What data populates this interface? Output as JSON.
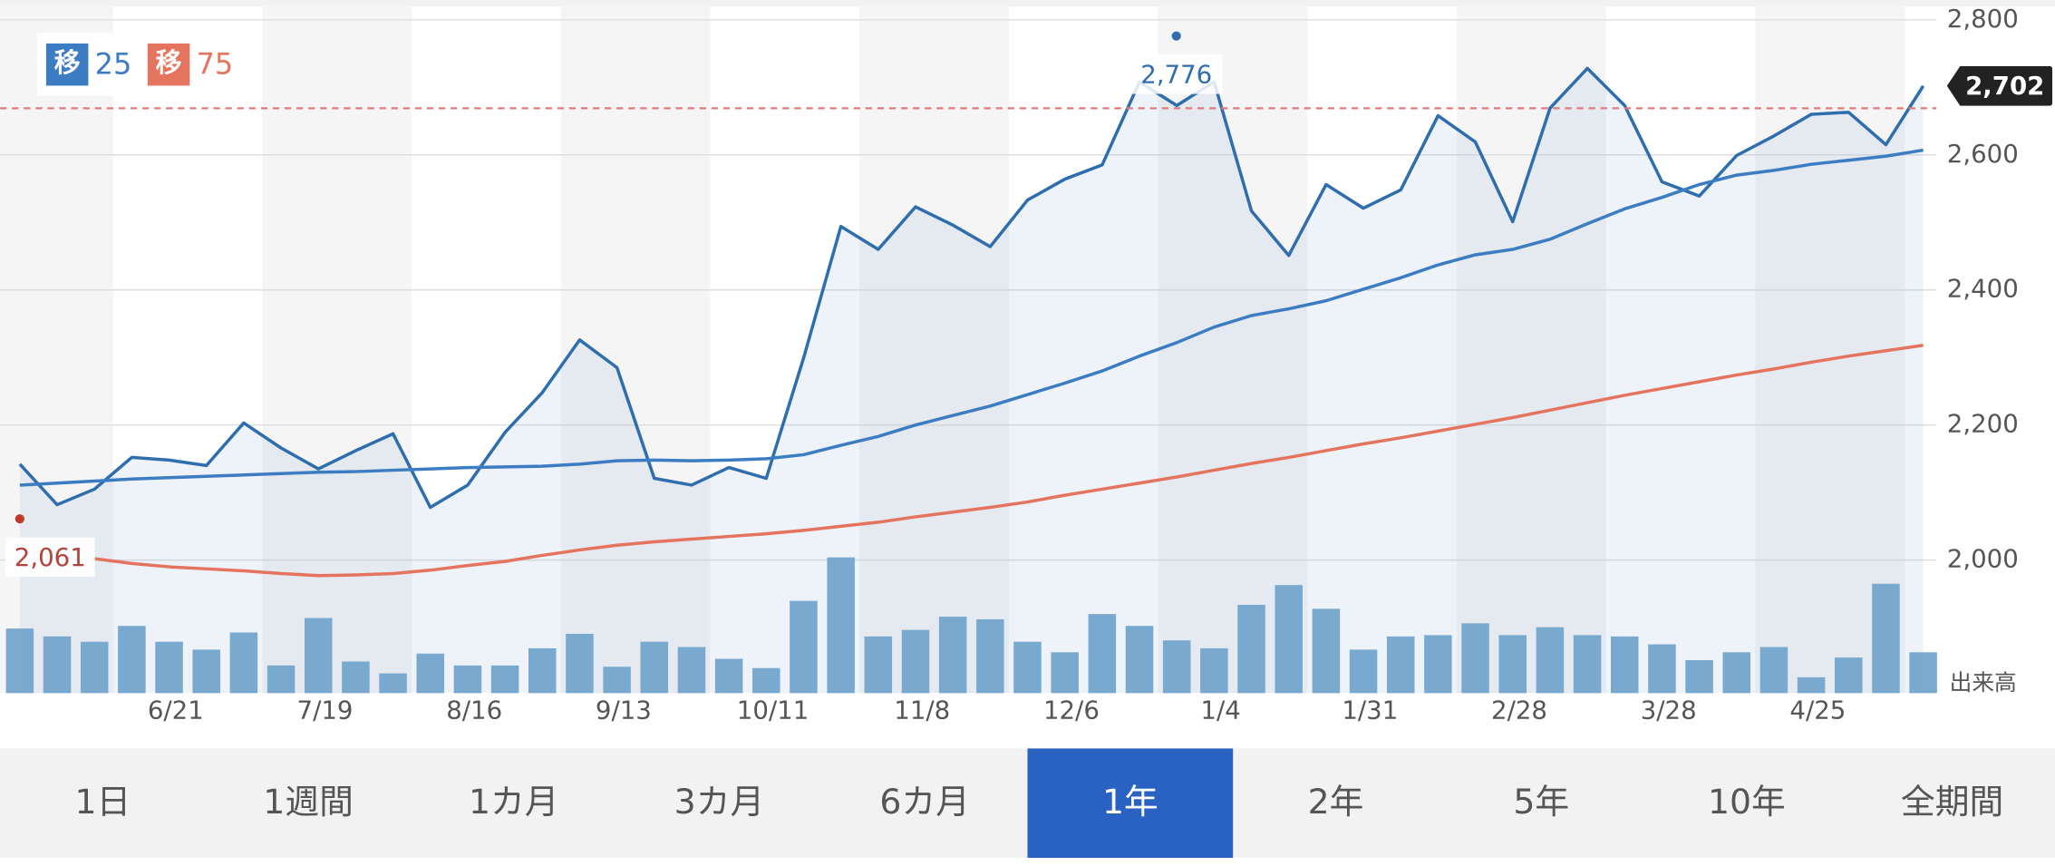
{
  "chart_data": {
    "type": "line",
    "categories": [
      null,
      null,
      null,
      null,
      "6/21",
      null,
      null,
      null,
      "7/19",
      null,
      null,
      null,
      "8/16",
      null,
      null,
      null,
      "9/13",
      null,
      null,
      null,
      "10/11",
      null,
      null,
      null,
      "11/8",
      null,
      null,
      null,
      "12/6",
      null,
      null,
      null,
      "1/4",
      null,
      null,
      null,
      "1/31",
      null,
      null,
      null,
      "2/28",
      null,
      null,
      null,
      "3/28",
      null,
      null,
      null,
      "4/25",
      null,
      null,
      null
    ],
    "ylim": [
      1803,
      2800
    ],
    "yticks": [
      {
        "value": 2000,
        "label": "2,000"
      },
      {
        "value": 2200,
        "label": "2,200"
      },
      {
        "value": 2400,
        "label": "2,400"
      },
      {
        "value": 2600,
        "label": "2,600"
      },
      {
        "value": 2800,
        "label": "2,800"
      }
    ],
    "grid": true,
    "legend_badge": "移",
    "series": [
      {
        "color": "#2f6eae",
        "values": [
          2142,
          2082,
          2105,
          2152,
          2148,
          2140,
          2203,
          2166,
          2135,
          2162,
          2187,
          2078,
          2111,
          2189,
          2248,
          2326,
          2285,
          2121,
          2111,
          2137,
          2121,
          2299,
          2494,
          2460,
          2523,
          2496,
          2464,
          2533,
          2564,
          2585,
          2708,
          2673,
          2708,
          2517,
          2451,
          2556,
          2521,
          2548,
          2658,
          2619,
          2501,
          2669,
          2728,
          2673,
          2560,
          2539,
          2599,
          2628,
          2660,
          2663,
          2615,
          2702
        ]
      },
      {
        "name": "25",
        "color": "#3c7cc2",
        "values": [
          2111,
          2114,
          2117,
          2120,
          2122,
          2124,
          2126,
          2128,
          2130,
          2131,
          2133,
          2135,
          2137,
          2138,
          2139,
          2142,
          2147,
          2148,
          2147,
          2148,
          2150,
          2156,
          2170,
          2183,
          2200,
          2214,
          2228,
          2245,
          2262,
          2280,
          2302,
          2322,
          2345,
          2362,
          2372,
          2384,
          2401,
          2418,
          2437,
          2452,
          2460,
          2475,
          2498,
          2520,
          2537,
          2556,
          2570,
          2577,
          2586,
          2592,
          2598,
          2607
        ]
      },
      {
        "name": "75",
        "color": "#e5745f",
        "values": [
          null,
          null,
          2002,
          1995,
          1990,
          1987,
          1984,
          1980,
          1977,
          1978,
          1980,
          1985,
          1992,
          1998,
          2007,
          2015,
          2022,
          2027,
          2031,
          2035,
          2039,
          2044,
          2050,
          2056,
          2064,
          2071,
          2078,
          2086,
          2096,
          2105,
          2114,
          2123,
          2133,
          2143,
          2152,
          2162,
          2172,
          2181,
          2191,
          2201,
          2211,
          2222,
          2233,
          2244,
          2254,
          2264,
          2274,
          2283,
          2293,
          2302,
          2310,
          2318
        ]
      }
    ],
    "volume": {
      "label": "出来高",
      "color": "#7aaad0",
      "values": [
        49,
        43,
        39,
        51,
        39,
        33,
        46,
        21,
        57,
        24,
        15,
        30,
        21,
        21,
        34,
        45,
        20,
        39,
        35,
        26,
        19,
        70,
        103,
        43,
        48,
        58,
        56,
        39,
        31,
        60,
        51,
        40,
        34,
        67,
        82,
        64,
        33,
        43,
        44,
        53,
        44,
        50,
        44,
        43,
        37,
        25,
        31,
        35,
        12,
        27,
        83,
        31
      ]
    },
    "high": {
      "label": "2,776",
      "value": 2776
    },
    "low": {
      "label": "2,061",
      "value": 2061
    },
    "last": {
      "label": "2,702",
      "value": 2702
    },
    "reference_value": 2669
  },
  "period_selector": {
    "options": [
      "1日",
      "1週間",
      "1カ月",
      "3カ月",
      "6カ月",
      "1年",
      "2年",
      "5年",
      "10年",
      "全期間"
    ],
    "selected": 5
  }
}
